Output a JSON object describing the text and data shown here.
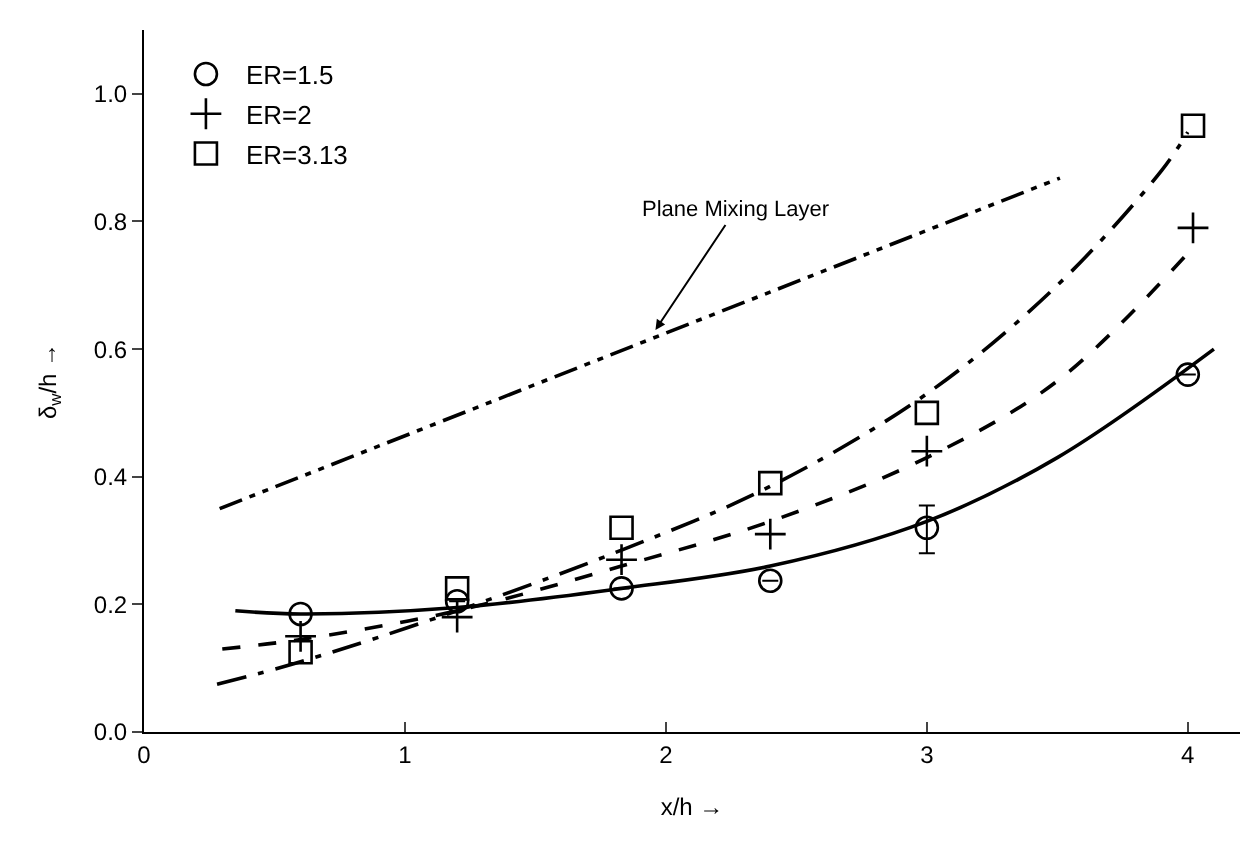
{
  "chart_data": {
    "type": "scatter",
    "xlabel": "x/h →",
    "ylabel": "δ$_{w}$/h →",
    "xlim": [
      0,
      4.2
    ],
    "ylim": [
      0,
      1.1
    ],
    "xticks": [
      0,
      1,
      2,
      3,
      4
    ],
    "yticks": [
      {
        "value": 0,
        "label": "0.0"
      },
      {
        "value": 0.2,
        "label": "0.2"
      },
      {
        "value": 0.4,
        "label": "0.4"
      },
      {
        "value": 0.6,
        "label": "0.6"
      },
      {
        "value": 0.8,
        "label": "0.8"
      },
      {
        "value": 1.0,
        "label": "1.0"
      }
    ],
    "legend": "top left",
    "series": [
      {
        "name": "ER=1.5",
        "marker": "circle",
        "color": "#000000",
        "x": [
          0.6,
          1.2,
          1.83,
          2.4,
          3.0,
          4.0
        ],
        "values": [
          0.185,
          0.205,
          0.225,
          0.237,
          0.32,
          0.56
        ],
        "errors": [
          null,
          null,
          null,
          null,
          [
            0.28,
            0.355
          ],
          null
        ]
      },
      {
        "name": "ER=2",
        "marker": "cross",
        "color": "#000000",
        "x": [
          0.6,
          1.2,
          1.83,
          2.4,
          3.0,
          4.02
        ],
        "values": [
          0.15,
          0.18,
          0.27,
          0.31,
          0.44,
          0.79
        ]
      },
      {
        "name": "ER=3.13",
        "marker": "square",
        "color": "#000000",
        "x": [
          0.6,
          1.2,
          1.83,
          2.4,
          3.0,
          4.02
        ],
        "values": [
          0.125,
          0.225,
          0.32,
          0.39,
          0.5,
          0.95
        ]
      },
      {
        "type": "line",
        "line_style": "solid",
        "color": "#000000",
        "x": [
          0.35,
          0.6,
          1.2,
          1.83,
          2.4,
          3.0,
          3.5,
          4.1
        ],
        "values": [
          0.19,
          0.185,
          0.195,
          0.225,
          0.26,
          0.33,
          0.43,
          0.6
        ]
      },
      {
        "type": "line",
        "line_style": "dashed",
        "color": "#000000",
        "x": [
          0.3,
          0.6,
          1.2,
          1.83,
          2.4,
          3.0,
          3.5,
          4.0
        ],
        "values": [
          0.13,
          0.145,
          0.19,
          0.26,
          0.33,
          0.43,
          0.55,
          0.75
        ]
      },
      {
        "type": "line",
        "line_style": "dashdot",
        "color": "#000000",
        "x": [
          0.28,
          0.6,
          1.2,
          1.83,
          2.4,
          3.0,
          3.5,
          3.9,
          4.0
        ],
        "values": [
          0.075,
          0.11,
          0.19,
          0.285,
          0.385,
          0.53,
          0.7,
          0.88,
          0.94
        ]
      },
      {
        "type": "line",
        "line_style": "dashdotdot",
        "color": "#000000",
        "x": [
          0.29,
          3.51
        ],
        "values": [
          0.35,
          0.868
        ]
      }
    ],
    "annotations": [
      {
        "text": "Plane Mixing Layer",
        "x": 1.96,
        "y": 0.63
      }
    ]
  }
}
